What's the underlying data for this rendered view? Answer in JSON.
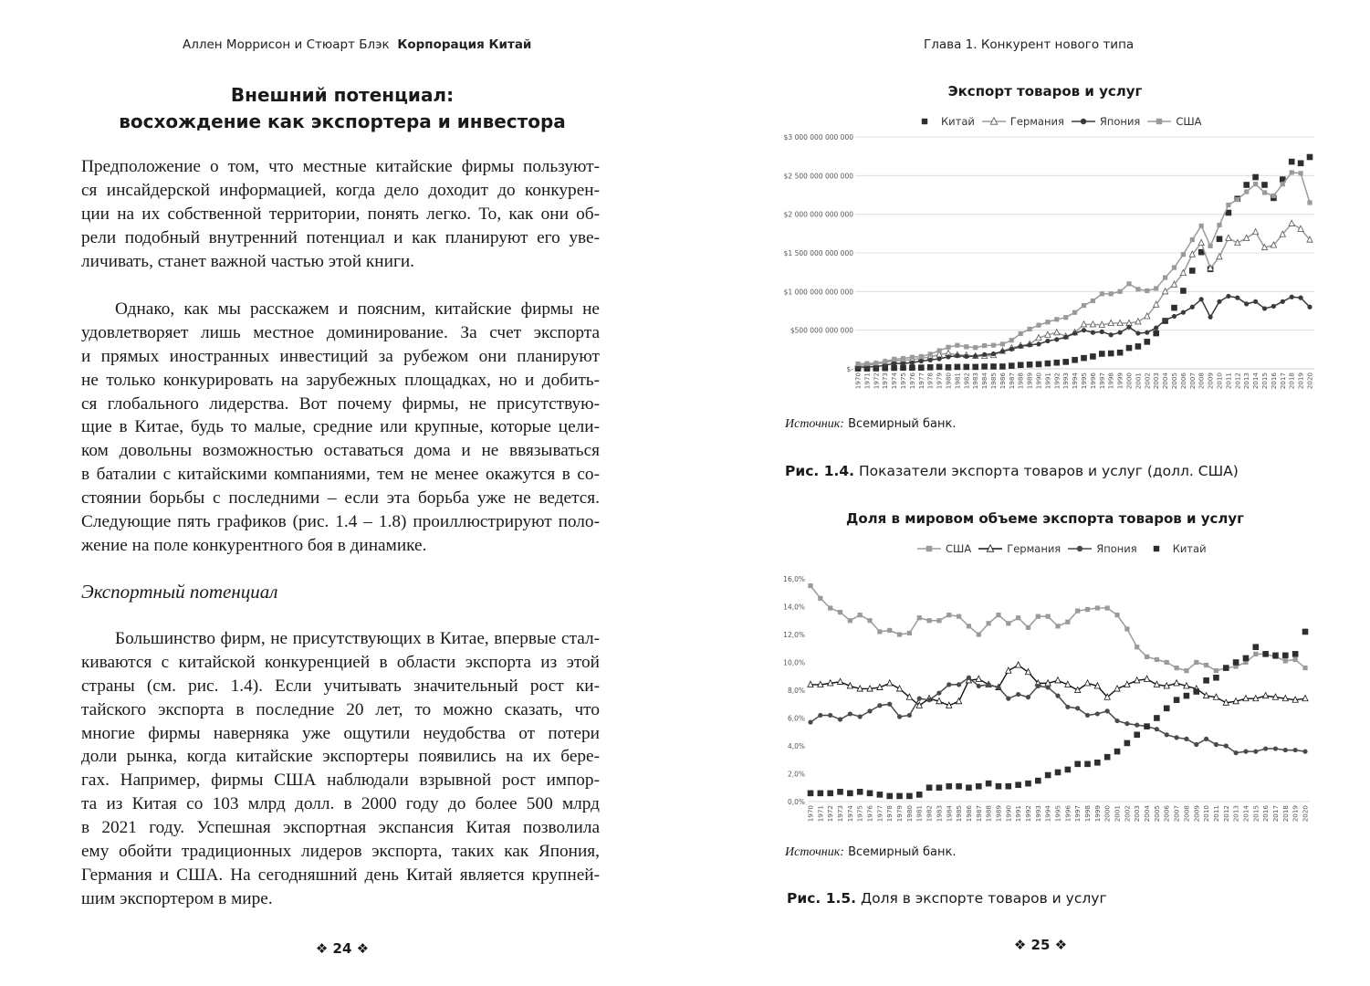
{
  "left_page": {
    "running_head": {
      "authors": "Аллен Моррисон и Стюарт Блэк",
      "book_title": "Корпорация Китай"
    },
    "chapter_heading": [
      "Внешний потенциал:",
      "восхождение как экспортера и инвестора"
    ],
    "paragraphs": [
      [
        "Предположение о том, что местные китайские фирмы пользуют-",
        "ся инсайдерской информацией, когда дело доходит до конкурен-",
        "ции на их собственной территории, понять легко. То, как они об-",
        "рели подобный внутренний потенциал и как планируют его уве-",
        "личивать, станет важной частью этой книги."
      ],
      [
        "Однако, как мы расскажем и поясним, китайские фирмы не",
        "удовлетворяет лишь местное доминирование. За счет экспорта",
        "и прямых иностранных инвестиций за рубежом они планируют",
        "не только конкурировать на зарубежных площадках, но и добить-",
        "ся глобального лидерства. Вот почему фирмы, не присутствую-",
        "щие в Китае, будь то малые, средние или крупные, которые цели-",
        "ком довольны возможностью оставаться дома и не ввязываться",
        "в баталии с китайскими компаниями, тем не менее окажутся в со-",
        "стоянии борьбы с последними – если эта борьба уже не ведется.",
        "Следующие пять графиков (рис. 1.4 – 1.8) проиллюстрируют поло-",
        "жение на поле конкурентного боя в динамике."
      ],
      [
        "Большинство фирм, не присутствующих в Китае, впервые стал-",
        "киваются с китайской конкуренцией в области экспорта из этой",
        "страны (см. рис. 1.4). Если учитывать значительный рост ки-",
        "тайского экспорта в последние 20 лет, то можно сказать, что",
        "многие фирмы наверняка уже ощутили неудобства от потери",
        "доли рынка, когда китайские экспортеры появились на их бере-",
        "гах. Например, фирмы США наблюдали взрывной рост импор-",
        "та из Китая со 103 млрд долл. в 2000 году до более 500 млрд",
        "в 2021 году. Успешная экспортная экспансия Китая позволила",
        "ему обойти традиционных лидеров экспорта, таких как Япония,",
        "Германия и США. На сегодняшний день Китай является крупней-",
        "шим экспортером в мире."
      ]
    ],
    "subheading": "Экспортный потенциал",
    "page_number": "❖ 24 ❖"
  },
  "right_page": {
    "running_head": "Глава 1. Конкурент нового типа",
    "figure_1": {
      "source_label": "Источник:",
      "source_text": "Всемирный банк.",
      "caption_label": "Рис. 1.4.",
      "caption_text": "Показатели экспорта товаров и услуг (долл. США)"
    },
    "figure_2": {
      "source_label": "Источник:",
      "source_text": "Всемирный банк.",
      "caption_label": "Рис. 1.5.",
      "caption_text": "Доля в экспорте товаров и услуг"
    },
    "page_number": "❖ 25 ❖"
  },
  "chart_data": [
    {
      "type": "line",
      "title": "Экспорт товаров и услуг",
      "legend_position": "top",
      "grid": true,
      "x": [
        1970,
        1971,
        1972,
        1973,
        1974,
        1975,
        1976,
        1977,
        1978,
        1979,
        1980,
        1981,
        1982,
        1983,
        1984,
        1985,
        1986,
        1987,
        1988,
        1989,
        1990,
        1991,
        1992,
        1993,
        1994,
        1995,
        1996,
        1997,
        1998,
        1999,
        2000,
        2001,
        2002,
        2003,
        2004,
        2005,
        2006,
        2007,
        2008,
        2009,
        2010,
        2011,
        2012,
        2013,
        2014,
        2015,
        2016,
        2017,
        2018,
        2019,
        2020
      ],
      "ylim": [
        0,
        3000000000000
      ],
      "y_ticks": [
        {
          "value": 0,
          "label": "$-"
        },
        {
          "value": 500000000000,
          "label": "$500 000 000 000"
        },
        {
          "value": 1000000000000,
          "label": "$1 000 000 000 000"
        },
        {
          "value": 1500000000000,
          "label": "$1 500 000 000 000"
        },
        {
          "value": 2000000000000,
          "label": "$2 000 000 000 000"
        },
        {
          "value": 2500000000000,
          "label": "$2 500 000 000 000"
        },
        {
          "value": 3000000000000,
          "label": "$3 000 000 000 000"
        }
      ],
      "series": [
        {
          "name": "Китай",
          "marker": "square",
          "line": false,
          "color": "#2e2e2e",
          "values": [
            5000000000.0,
            5000000000.0,
            6000000000.0,
            10000000000.0,
            13000000000.0,
            15000000000.0,
            15000000000.0,
            16000000000.0,
            20000000000.0,
            25000000000.0,
            20000000000.0,
            25000000000.0,
            25000000000.0,
            25000000000.0,
            30000000000.0,
            30000000000.0,
            30000000000.0,
            40000000000.0,
            50000000000.0,
            55000000000.0,
            60000000000.0,
            70000000000.0,
            80000000000.0,
            90000000000.0,
            115000000000.0,
            140000000000.0,
            160000000000.0,
            195000000000.0,
            200000000000.0,
            210000000000.0,
            270000000000.0,
            290000000000.0,
            350000000000.0,
            460000000000.0,
            620000000000.0,
            790000000000.0,
            1010000000000.0,
            1270000000000.0,
            1510000000000.0,
            1290000000000.0,
            1680000000000.0,
            2020000000000.0,
            2200000000000.0,
            2380000000000.0,
            2480000000000.0,
            2380000000000.0,
            2210000000000.0,
            2450000000000.0,
            2680000000000.0,
            2660000000000.0,
            2740000000000.0
          ]
        },
        {
          "name": "Германия",
          "marker": "triangle",
          "line": true,
          "color": "#9a9a9a",
          "values": [
            45000000000.0,
            50000000000.0,
            60000000000.0,
            85000000000.0,
            105000000000.0,
            110000000000.0,
            120000000000.0,
            135000000000.0,
            155000000000.0,
            185000000000.0,
            200000000000.0,
            180000000000.0,
            175000000000.0,
            165000000000.0,
            165000000000.0,
            175000000000.0,
            230000000000.0,
            270000000000.0,
            300000000000.0,
            320000000000.0,
            400000000000.0,
            440000000000.0,
            470000000000.0,
            420000000000.0,
            470000000000.0,
            575000000000.0,
            575000000000.0,
            570000000000.0,
            590000000000.0,
            590000000000.0,
            590000000000.0,
            610000000000.0,
            680000000000.0,
            830000000000.0,
            1000000000000.0,
            1090000000000.0,
            1240000000000.0,
            1480000000000.0,
            1630000000000.0,
            1300000000000.0,
            1450000000000.0,
            1690000000000.0,
            1630000000000.0,
            1690000000000.0,
            1770000000000.0,
            1570000000000.0,
            1600000000000.0,
            1740000000000.0,
            1880000000000.0,
            1810000000000.0,
            1670000000000.0
          ]
        },
        {
          "name": "Япония",
          "marker": "circle",
          "line": true,
          "color": "#3a3a3a",
          "values": [
            20000000000.0,
            25000000000.0,
            30000000000.0,
            45000000000.0,
            70000000000.0,
            70000000000.0,
            80000000000.0,
            100000000000.0,
            115000000000.0,
            130000000000.0,
            155000000000.0,
            170000000000.0,
            160000000000.0,
            165000000000.0,
            185000000000.0,
            195000000000.0,
            225000000000.0,
            255000000000.0,
            290000000000.0,
            310000000000.0,
            320000000000.0,
            360000000000.0,
            380000000000.0,
            410000000000.0,
            460000000000.0,
            500000000000.0,
            470000000000.0,
            480000000000.0,
            440000000000.0,
            470000000000.0,
            540000000000.0,
            460000000000.0,
            470000000000.0,
            530000000000.0,
            630000000000.0,
            680000000000.0,
            730000000000.0,
            800000000000.0,
            900000000000.0,
            670000000000.0,
            870000000000.0,
            940000000000.0,
            920000000000.0,
            840000000000.0,
            870000000000.0,
            780000000000.0,
            810000000000.0,
            870000000000.0,
            930000000000.0,
            920000000000.0,
            800000000000.0
          ]
        },
        {
          "name": "США",
          "marker": "square",
          "line": true,
          "color": "#9a9a9a",
          "values": [
            65000000000.0,
            68000000000.0,
            75000000000.0,
            95000000000.0,
            125000000000.0,
            135000000000.0,
            150000000000.0,
            160000000000.0,
            190000000000.0,
            235000000000.0,
            280000000000.0,
            305000000000.0,
            285000000000.0,
            275000000000.0,
            300000000000.0,
            305000000000.0,
            320000000000.0,
            370000000000.0,
            455000000000.0,
            515000000000.0,
            565000000000.0,
            605000000000.0,
            640000000000.0,
            665000000000.0,
            730000000000.0,
            820000000000.0,
            880000000000.0,
            970000000000.0,
            970000000000.0,
            1000000000000.0,
            1100000000000.0,
            1030000000000.0,
            1010000000000.0,
            1040000000000.0,
            1180000000000.0,
            1310000000000.0,
            1480000000000.0,
            1670000000000.0,
            1850000000000.0,
            1590000000000.0,
            1860000000000.0,
            2120000000000.0,
            2190000000000.0,
            2290000000000.0,
            2390000000000.0,
            2280000000000.0,
            2240000000000.0,
            2390000000000.0,
            2540000000000.0,
            2530000000000.0,
            2150000000000.0
          ]
        }
      ]
    },
    {
      "type": "line",
      "title": "Доля в мировом объеме экспорта товаров и услуг",
      "legend_position": "top",
      "grid": false,
      "x": [
        1970,
        1971,
        1972,
        1973,
        1974,
        1975,
        1976,
        1977,
        1978,
        1979,
        1980,
        1981,
        1982,
        1983,
        1984,
        1985,
        1986,
        1987,
        1988,
        1989,
        1990,
        1991,
        1992,
        1993,
        1994,
        1995,
        1996,
        1997,
        1998,
        1999,
        2000,
        2001,
        2002,
        2003,
        2004,
        2005,
        2006,
        2007,
        2008,
        2009,
        2010,
        2011,
        2012,
        2013,
        2014,
        2015,
        2016,
        2017,
        2018,
        2019,
        2020
      ],
      "ylim": [
        0,
        16
      ],
      "y_unit": "%",
      "y_ticks": [
        {
          "value": 0,
          "label": "0,0%"
        },
        {
          "value": 2,
          "label": "2,0%"
        },
        {
          "value": 4,
          "label": "4,0%"
        },
        {
          "value": 6,
          "label": "6,0%"
        },
        {
          "value": 8,
          "label": "8,0%"
        },
        {
          "value": 10,
          "label": "10,0%"
        },
        {
          "value": 12,
          "label": "12,0%"
        },
        {
          "value": 14,
          "label": "14,0%"
        },
        {
          "value": 16,
          "label": "16,0%"
        }
      ],
      "series": [
        {
          "name": "США",
          "marker": "square",
          "line": true,
          "color": "#9a9a9a",
          "values": [
            15.5,
            14.6,
            13.9,
            13.6,
            13.0,
            13.4,
            13.0,
            12.2,
            12.3,
            12.0,
            12.1,
            13.2,
            13.0,
            13.0,
            13.4,
            13.3,
            12.6,
            12.0,
            12.8,
            13.4,
            12.8,
            13.2,
            12.5,
            13.3,
            13.3,
            12.6,
            12.9,
            13.7,
            13.8,
            13.9,
            13.9,
            13.4,
            12.4,
            11.1,
            10.4,
            10.2,
            10.0,
            9.6,
            9.4,
            10.0,
            9.8,
            9.4,
            9.6,
            9.7,
            10.0,
            10.6,
            10.6,
            10.4,
            10.1,
            10.2,
            9.6
          ]
        },
        {
          "name": "Германия",
          "marker": "triangle",
          "line": true,
          "color": "#111111",
          "values": [
            8.4,
            8.4,
            8.5,
            8.6,
            8.3,
            8.1,
            8.1,
            8.2,
            8.5,
            8.1,
            7.5,
            6.9,
            7.4,
            7.2,
            6.9,
            7.2,
            8.7,
            8.8,
            8.4,
            8.2,
            9.4,
            9.8,
            9.3,
            8.5,
            8.5,
            8.7,
            8.4,
            8.0,
            8.5,
            8.3,
            7.5,
            8.1,
            8.4,
            8.7,
            8.8,
            8.4,
            8.3,
            8.5,
            8.3,
            8.1,
            7.6,
            7.5,
            7.1,
            7.2,
            7.4,
            7.4,
            7.6,
            7.5,
            7.4,
            7.3,
            7.4
          ]
        },
        {
          "name": "Япония",
          "marker": "circle",
          "line": true,
          "color": "#4a4a4a",
          "values": [
            5.7,
            6.2,
            6.2,
            5.9,
            6.3,
            6.1,
            6.5,
            6.9,
            7.0,
            6.1,
            6.2,
            7.4,
            7.3,
            7.8,
            8.4,
            8.4,
            8.9,
            8.3,
            8.4,
            8.2,
            7.4,
            7.7,
            7.5,
            8.3,
            8.2,
            7.6,
            6.8,
            6.7,
            6.2,
            6.3,
            6.5,
            5.8,
            5.6,
            5.5,
            5.4,
            5.2,
            4.8,
            4.6,
            4.5,
            4.1,
            4.5,
            4.1,
            4.0,
            3.5,
            3.6,
            3.6,
            3.8,
            3.8,
            3.7,
            3.7,
            3.6
          ]
        },
        {
          "name": "Китай",
          "marker": "square",
          "line": false,
          "color": "#2e2e2e",
          "values": [
            0.6,
            0.6,
            0.6,
            0.7,
            0.6,
            0.7,
            0.6,
            0.5,
            0.4,
            0.4,
            0.4,
            0.5,
            1.0,
            1.0,
            1.1,
            1.1,
            1.0,
            1.1,
            1.3,
            1.1,
            1.1,
            1.2,
            1.3,
            1.5,
            1.9,
            2.1,
            2.3,
            2.7,
            2.7,
            2.8,
            3.2,
            3.6,
            4.2,
            4.8,
            5.4,
            6.0,
            6.7,
            7.3,
            7.6,
            7.9,
            8.7,
            8.9,
            9.6,
            10.0,
            10.3,
            11.1,
            10.6,
            10.5,
            10.5,
            10.6,
            12.2
          ]
        }
      ]
    }
  ]
}
